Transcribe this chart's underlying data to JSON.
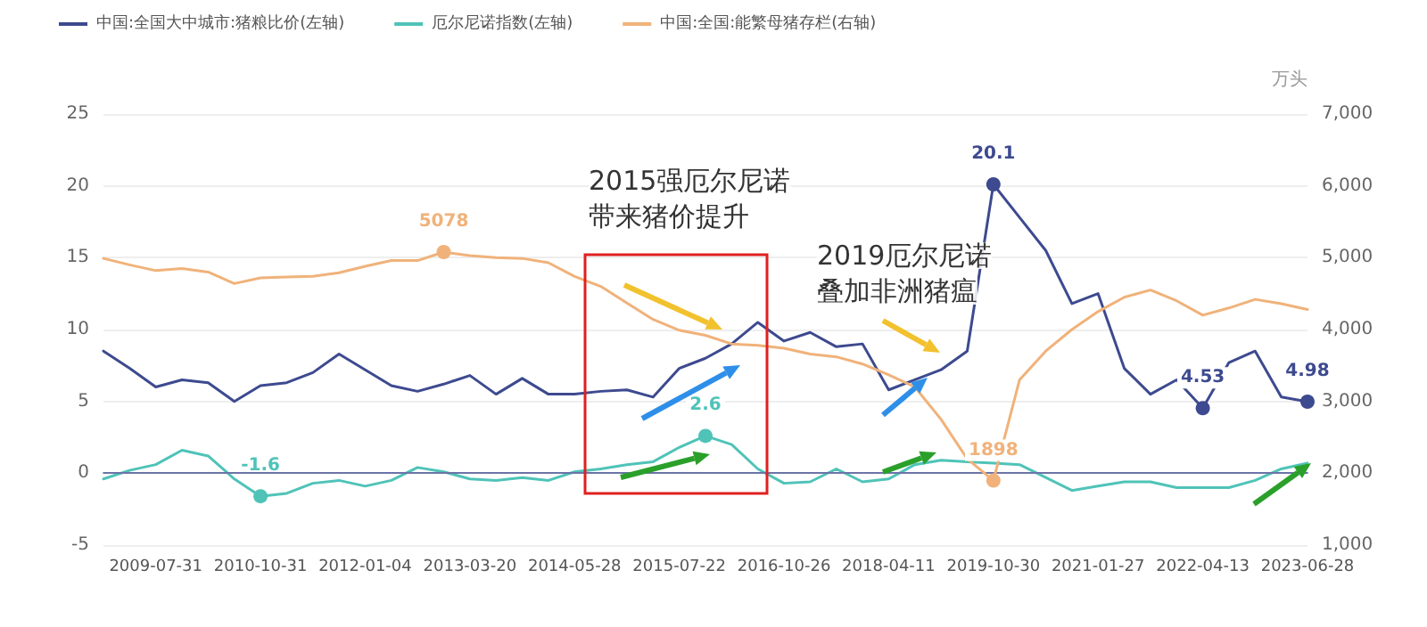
{
  "chart_data": {
    "type": "line",
    "categories": [
      null,
      null,
      "2009-07-31",
      null,
      null,
      null,
      "2010-10-31",
      null,
      null,
      null,
      "2012-01-04",
      null,
      null,
      null,
      "2013-03-20",
      null,
      null,
      null,
      "2014-05-28",
      null,
      null,
      null,
      "2015-07-22",
      null,
      null,
      null,
      "2016-10-26",
      null,
      null,
      null,
      "2018-04-11",
      null,
      null,
      null,
      "2019-10-30",
      null,
      null,
      null,
      "2021-01-27",
      null,
      null,
      null,
      "2022-04-13",
      null,
      null,
      null,
      "2023-06-28"
    ],
    "series": [
      {
        "name": "中国:全国大中城市:猪粮比价(左轴)",
        "color": "#3d4a8f",
        "values": [
          8.5,
          7.3,
          6.0,
          6.5,
          6.3,
          5.0,
          6.1,
          6.3,
          7.0,
          8.3,
          7.2,
          6.1,
          5.7,
          6.2,
          6.8,
          5.5,
          6.6,
          5.5,
          5.5,
          5.7,
          5.8,
          5.3,
          7.3,
          8.0,
          9.0,
          10.5,
          9.2,
          9.8,
          8.8,
          9.0,
          5.8,
          6.5,
          7.2,
          8.5,
          20.1,
          17.8,
          15.5,
          11.8,
          12.5,
          7.3,
          5.5,
          6.5,
          4.53,
          7.7,
          8.5,
          5.3,
          4.98
        ],
        "value_labels": [
          null,
          null,
          null,
          null,
          null,
          null,
          null,
          null,
          null,
          null,
          null,
          null,
          null,
          null,
          null,
          null,
          null,
          null,
          null,
          null,
          null,
          null,
          null,
          null,
          null,
          null,
          null,
          null,
          null,
          null,
          null,
          null,
          null,
          null,
          "20.1",
          null,
          null,
          null,
          null,
          null,
          null,
          null,
          "4.53",
          null,
          null,
          null,
          "4.98"
        ]
      },
      {
        "name": "厄尔尼诺指数(左轴)",
        "color": "#4fc3b8",
        "values": [
          -0.4,
          0.2,
          0.6,
          1.6,
          1.2,
          -0.4,
          -1.6,
          -1.4,
          -0.7,
          -0.5,
          -0.9,
          -0.5,
          0.4,
          0.1,
          -0.4,
          -0.5,
          -0.3,
          -0.5,
          0.1,
          0.3,
          0.6,
          0.8,
          1.8,
          2.6,
          2.0,
          0.3,
          -0.7,
          -0.6,
          0.3,
          -0.6,
          -0.4,
          0.6,
          0.9,
          0.8,
          0.7,
          0.6,
          -0.3,
          -1.2,
          -0.9,
          -0.6,
          -0.6,
          -1.0,
          -1.0,
          -1.0,
          -0.5,
          0.3,
          0.7
        ],
        "value_labels": [
          null,
          null,
          null,
          null,
          null,
          null,
          "-1.6",
          null,
          null,
          null,
          null,
          null,
          null,
          null,
          null,
          null,
          null,
          null,
          null,
          null,
          null,
          null,
          null,
          "2.6",
          null,
          null,
          null,
          null,
          null,
          null,
          null,
          null,
          null,
          null,
          null,
          null,
          null,
          null,
          null,
          null,
          null,
          null,
          null,
          null,
          null,
          null,
          null
        ]
      },
      {
        "name": "中国:全国:能繁母猪存栏(右轴)",
        "color": "#f0b27a",
        "axis": "y2",
        "values": [
          4990,
          4900,
          4820,
          4850,
          4800,
          4640,
          4720,
          4730,
          4740,
          4790,
          4880,
          4960,
          4960,
          5078,
          5030,
          5000,
          4990,
          4930,
          4740,
          4600,
          4370,
          4140,
          3990,
          3920,
          3800,
          3780,
          3740,
          3660,
          3620,
          3520,
          3370,
          3200,
          2750,
          2200,
          1898,
          3300,
          3700,
          4000,
          4250,
          4450,
          4550,
          4400,
          4200,
          4300,
          4420,
          4360,
          4280
        ],
        "value_labels": [
          null,
          null,
          null,
          null,
          null,
          null,
          null,
          null,
          null,
          null,
          null,
          null,
          null,
          "5078",
          null,
          null,
          null,
          null,
          null,
          null,
          null,
          null,
          null,
          null,
          null,
          null,
          null,
          null,
          null,
          null,
          null,
          null,
          null,
          null,
          "1898",
          null,
          null,
          null,
          null,
          null,
          null,
          null,
          null,
          null,
          null,
          null,
          null
        ]
      }
    ],
    "ylim": [
      -5,
      25
    ],
    "yticks": [
      -5,
      0,
      5,
      10,
      15,
      20,
      25
    ],
    "y2label": "万头",
    "y2lim": [
      1000,
      7000
    ],
    "y2ticks": [
      {
        "value": 1000,
        "label": "1,000"
      },
      {
        "value": 2000,
        "label": "2,000"
      },
      {
        "value": 3000,
        "label": "3,000"
      },
      {
        "value": 4000,
        "label": "4,000"
      },
      {
        "value": 5000,
        "label": "5,000"
      },
      {
        "value": 6000,
        "label": "6,000"
      },
      {
        "value": 7000,
        "label": "7,000"
      }
    ],
    "ref_lines": [
      {
        "axis": "y",
        "value": 0,
        "color": "#6b74a8"
      }
    ],
    "annotations": [
      "2015强厄尔尼诺",
      "带来猪价提升",
      "2019厄尔尼诺",
      "叠加非洲猪瘟"
    ],
    "grid": "y",
    "legend": "top left",
    "line_style": "solid"
  }
}
